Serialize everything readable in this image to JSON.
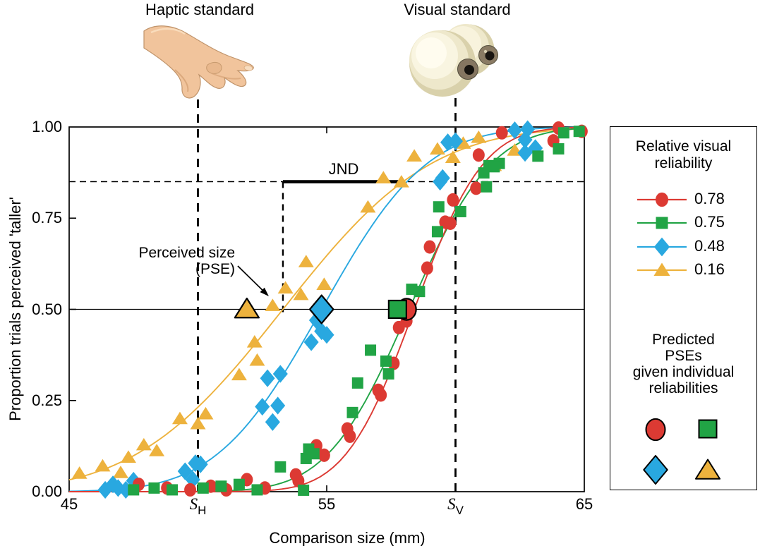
{
  "header": {
    "haptic_label": "Haptic standard",
    "visual_label": "Visual standard"
  },
  "annotations": {
    "jnd_label": "JND",
    "pse_label_line1": "Perceived size",
    "pse_label_line2": "(PSE)"
  },
  "legend": {
    "reliability_title": [
      "Relative visual",
      "reliability"
    ],
    "predicted_title": [
      "Predicted",
      "PSEs",
      "given individual",
      "reliabilities"
    ]
  },
  "chart_data": {
    "type": "scatter",
    "title": "",
    "xlabel": "Comparison size (mm)",
    "ylabel": "Proportion trials perceived 'taller'",
    "xlim": [
      45,
      65
    ],
    "ylim": [
      0,
      1
    ],
    "grid": false,
    "legend_position": "right",
    "x_ticks": [
      {
        "v": 45,
        "label": "45"
      },
      {
        "v": 50,
        "label": "S",
        "sub": "H"
      },
      {
        "v": 55,
        "label": "55"
      },
      {
        "v": 60,
        "label": "S",
        "sub": "V"
      },
      {
        "v": 65,
        "label": "65"
      }
    ],
    "y_ticks": [
      {
        "v": 0.0,
        "label": "0.00"
      },
      {
        "v": 0.25,
        "label": "0.25"
      },
      {
        "v": 0.5,
        "label": "0.50"
      },
      {
        "v": 0.75,
        "label": "0.75"
      },
      {
        "v": 1.0,
        "label": "1.00"
      }
    ],
    "haptic_standard_mm": 50,
    "visual_standard_mm": 60,
    "pse_mm": 53.3,
    "jnd_level": 0.85,
    "half_level": 0.5,
    "jnd_bar": {
      "from_mm": 53.3,
      "to_mm": 57.85
    },
    "series": [
      {
        "name": "0.78",
        "reliability": 0.78,
        "marker": "circle",
        "color": "#dc3a33",
        "curve_mean": 58.4,
        "curve_sigma": 2.1,
        "predicted_pse_mm": 58.1,
        "points": [
          [
            47.7,
            0.02
          ],
          [
            48.8,
            0.01
          ],
          [
            49.7,
            0.005
          ],
          [
            50.5,
            0.015
          ],
          [
            51.1,
            0.005
          ],
          [
            51.9,
            0.033
          ],
          [
            52.6,
            0.01
          ],
          [
            53.8,
            0.046
          ],
          [
            53.9,
            0.03
          ],
          [
            54.6,
            0.126
          ],
          [
            54.9,
            0.1
          ],
          [
            55.8,
            0.172
          ],
          [
            55.9,
            0.152
          ],
          [
            57.0,
            0.278
          ],
          [
            57.1,
            0.265
          ],
          [
            57.6,
            0.352
          ],
          [
            57.8,
            0.45
          ],
          [
            58.1,
            0.468
          ],
          [
            58.9,
            0.613
          ],
          [
            59.0,
            0.671
          ],
          [
            59.6,
            0.739
          ],
          [
            59.8,
            0.736
          ],
          [
            59.9,
            0.8
          ],
          [
            60.8,
            0.832
          ],
          [
            60.9,
            0.923
          ],
          [
            61.8,
            0.984
          ],
          [
            63.8,
            0.962
          ],
          [
            64.0,
            0.997
          ],
          [
            64.9,
            0.988
          ]
        ]
      },
      {
        "name": "0.75",
        "reliability": 0.75,
        "marker": "square",
        "color": "#21a445",
        "curve_mean": 58.2,
        "curve_sigma": 2.5,
        "predicted_pse_mm": 57.75,
        "points": [
          [
            47.5,
            0.005
          ],
          [
            48.3,
            0.01
          ],
          [
            49.0,
            0.005
          ],
          [
            50.2,
            0.01
          ],
          [
            50.9,
            0.015
          ],
          [
            51.6,
            0.02
          ],
          [
            52.3,
            0.005
          ],
          [
            53.2,
            0.068
          ],
          [
            54.1,
            0.004
          ],
          [
            54.2,
            0.091
          ],
          [
            54.3,
            0.117
          ],
          [
            54.5,
            0.104
          ],
          [
            56.0,
            0.217
          ],
          [
            56.2,
            0.298
          ],
          [
            56.7,
            0.388
          ],
          [
            57.3,
            0.358
          ],
          [
            57.4,
            0.323
          ],
          [
            58.3,
            0.555
          ],
          [
            58.6,
            0.549
          ],
          [
            59.3,
            0.713
          ],
          [
            59.35,
            0.781
          ],
          [
            60.2,
            0.768
          ],
          [
            61.1,
            0.874
          ],
          [
            61.2,
            0.836
          ],
          [
            61.3,
            0.894
          ],
          [
            61.7,
            0.9
          ],
          [
            61.5,
            0.891
          ],
          [
            63.2,
            0.92
          ],
          [
            64.0,
            0.94
          ],
          [
            64.2,
            0.984
          ],
          [
            64.8,
            0.988
          ]
        ]
      },
      {
        "name": "0.48",
        "reliability": 0.48,
        "marker": "diamond",
        "color": "#29a8e0",
        "curve_mean": 54.8,
        "curve_sigma": 3.2,
        "predicted_pse_mm": 54.8,
        "points": [
          [
            46.4,
            0.005
          ],
          [
            46.7,
            0.02
          ],
          [
            46.9,
            0.01
          ],
          [
            47.2,
            0.005
          ],
          [
            47.5,
            0.03
          ],
          [
            49.5,
            0.056
          ],
          [
            49.8,
            0.033
          ],
          [
            49.9,
            0.078
          ],
          [
            50.1,
            0.075
          ],
          [
            52.5,
            0.233
          ],
          [
            52.9,
            0.191
          ],
          [
            53.1,
            0.236
          ],
          [
            52.7,
            0.311
          ],
          [
            53.2,
            0.323
          ],
          [
            54.4,
            0.41
          ],
          [
            54.6,
            0.47
          ],
          [
            54.8,
            0.44
          ],
          [
            55.0,
            0.43
          ],
          [
            59.4,
            0.85
          ],
          [
            59.5,
            0.86
          ],
          [
            59.7,
            0.958
          ],
          [
            60.0,
            0.961
          ],
          [
            62.3,
            0.991
          ],
          [
            62.7,
            0.965
          ],
          [
            62.8,
            0.994
          ],
          [
            63.1,
            0.942
          ],
          [
            62.7,
            0.929
          ]
        ]
      },
      {
        "name": "0.16",
        "reliability": 0.16,
        "marker": "triangle",
        "color": "#edb23d",
        "curve_mean": 53.3,
        "curve_sigma": 4.5,
        "predicted_pse_mm": 51.9,
        "points": [
          [
            45.4,
            0.05
          ],
          [
            46.3,
            0.07
          ],
          [
            47.0,
            0.052
          ],
          [
            47.3,
            0.094
          ],
          [
            47.9,
            0.128
          ],
          [
            48.4,
            0.112
          ],
          [
            49.3,
            0.2
          ],
          [
            50.0,
            0.186
          ],
          [
            50.3,
            0.213
          ],
          [
            51.6,
            0.32
          ],
          [
            52.2,
            0.41
          ],
          [
            52.3,
            0.36
          ],
          [
            52.9,
            0.51
          ],
          [
            53.4,
            0.558
          ],
          [
            54.0,
            0.54
          ],
          [
            54.9,
            0.568
          ],
          [
            54.2,
            0.63
          ],
          [
            56.6,
            0.78
          ],
          [
            57.2,
            0.86
          ],
          [
            57.9,
            0.849
          ],
          [
            58.4,
            0.92
          ],
          [
            59.3,
            0.939
          ],
          [
            59.9,
            0.916
          ],
          [
            60.3,
            0.955
          ],
          [
            60.9,
            0.971
          ],
          [
            61.5,
            0.894
          ],
          [
            62.3,
            0.936
          ]
        ]
      }
    ]
  }
}
